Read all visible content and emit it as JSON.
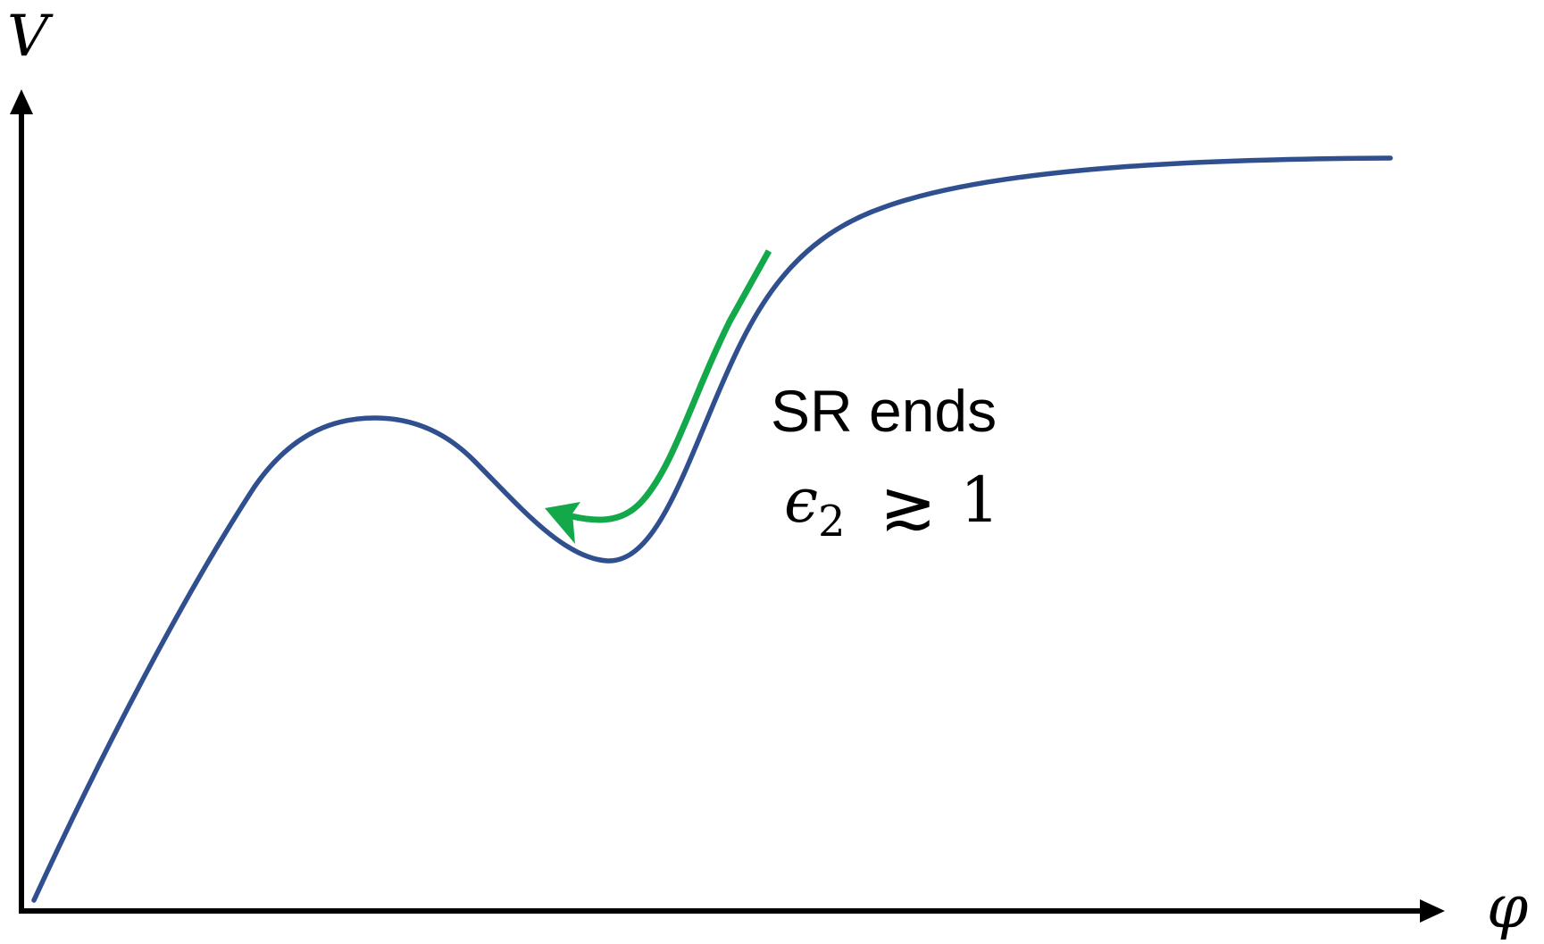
{
  "axes": {
    "y_label": "V",
    "x_label": "φ"
  },
  "annotation": {
    "text": "SR ends",
    "condition_symbol": "ϵ",
    "condition_subscript": "2",
    "condition_relation": "≳",
    "condition_value": "1"
  },
  "colors": {
    "potential": "#2f4f8f",
    "trajectory": "#13a84a",
    "axes": "#000000"
  }
}
